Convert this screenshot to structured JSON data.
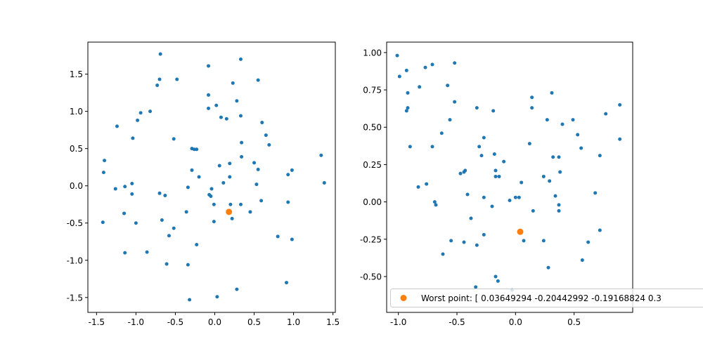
{
  "chart_data": [
    {
      "type": "scatter",
      "title": "",
      "xlabel": "",
      "ylabel": "",
      "xlim": [
        -1.61,
        1.53
      ],
      "ylim": [
        -1.7,
        1.93
      ],
      "xticks": [
        "-1.5",
        "-1.0",
        "-0.5",
        "0.0",
        "0.5",
        "1.0",
        "1.5"
      ],
      "yticks": [
        "-1.5",
        "-1.0",
        "-0.5",
        "0.0",
        "0.5",
        "1.0",
        "1.5"
      ],
      "grid": false,
      "series": [
        {
          "color": "#1f77b4",
          "points": [
            [
              -0.69,
              1.77
            ],
            [
              0.33,
              1.7
            ],
            [
              -0.08,
              1.61
            ],
            [
              -0.73,
              1.35
            ],
            [
              -0.7,
              1.43
            ],
            [
              -0.48,
              1.43
            ],
            [
              0.55,
              1.42
            ],
            [
              0.23,
              1.38
            ],
            [
              -0.08,
              1.22
            ],
            [
              0.28,
              1.14
            ],
            [
              -0.08,
              1.04
            ],
            [
              0.02,
              1.08
            ],
            [
              -0.82,
              1.0
            ],
            [
              -0.94,
              0.98
            ],
            [
              -0.98,
              0.88
            ],
            [
              0.08,
              0.92
            ],
            [
              0.15,
              0.9
            ],
            [
              0.33,
              0.94
            ],
            [
              0.6,
              0.85
            ],
            [
              -1.24,
              0.8
            ],
            [
              0.65,
              0.68
            ],
            [
              -1.04,
              0.64
            ],
            [
              -0.52,
              0.63
            ],
            [
              0.34,
              0.58
            ],
            [
              0.69,
              0.55
            ],
            [
              -0.29,
              0.5
            ],
            [
              -0.26,
              0.49
            ],
            [
              -0.23,
              0.49
            ],
            [
              0.34,
              0.39
            ],
            [
              -1.4,
              0.34
            ],
            [
              1.35,
              0.41
            ],
            [
              0.5,
              0.31
            ],
            [
              0.06,
              0.27
            ],
            [
              0.19,
              0.3
            ],
            [
              -0.29,
              0.21
            ],
            [
              0.55,
              0.22
            ],
            [
              -1.41,
              0.18
            ],
            [
              0.98,
              0.21
            ],
            [
              0.93,
              0.15
            ],
            [
              -0.2,
              0.12
            ],
            [
              0.19,
              0.12
            ],
            [
              0.11,
              0.04
            ],
            [
              1.39,
              0.04
            ],
            [
              -1.05,
              0.03
            ],
            [
              0.53,
              0.02
            ],
            [
              -1.26,
              -0.04
            ],
            [
              -1.14,
              -0.01
            ],
            [
              -0.34,
              -0.02
            ],
            [
              -0.04,
              -0.04
            ],
            [
              -0.7,
              -0.1
            ],
            [
              -0.07,
              -0.12
            ],
            [
              -0.63,
              -0.13
            ],
            [
              -1.05,
              -0.11
            ],
            [
              -0.05,
              -0.14
            ],
            [
              0.59,
              -0.2
            ],
            [
              0.93,
              -0.22
            ],
            [
              0.2,
              -0.25
            ],
            [
              -0.01,
              -0.25
            ],
            [
              0.33,
              -0.25
            ],
            [
              -0.36,
              -0.35
            ],
            [
              0.45,
              -0.35
            ],
            [
              -1.15,
              -0.37
            ],
            [
              0.22,
              -0.44
            ],
            [
              -1.42,
              -0.49
            ],
            [
              -0.67,
              -0.46
            ],
            [
              -0.01,
              -0.48
            ],
            [
              -1.0,
              -0.5
            ],
            [
              -0.52,
              -0.57
            ],
            [
              -0.58,
              -0.67
            ],
            [
              0.8,
              -0.68
            ],
            [
              -0.23,
              -0.79
            ],
            [
              0.98,
              -0.72
            ],
            [
              -1.14,
              -0.9
            ],
            [
              -0.86,
              -0.89
            ],
            [
              -0.61,
              -1.05
            ],
            [
              -0.34,
              -1.06
            ],
            [
              0.91,
              -1.3
            ],
            [
              0.28,
              -1.39
            ],
            [
              0.03,
              -1.49
            ],
            [
              -0.32,
              -1.53
            ]
          ]
        },
        {
          "color": "#ff7f0e",
          "points": [
            [
              0.18,
              -0.35
            ]
          ]
        }
      ]
    },
    {
      "type": "scatter",
      "title": "",
      "xlabel": "",
      "ylabel": "",
      "xlim": [
        -1.1,
        1.0
      ],
      "ylim": [
        -0.74,
        1.07
      ],
      "xticks": [
        "-1.0",
        "-0.5",
        "0.0",
        "0.5"
      ],
      "yticks": [
        "-0.50",
        "-0.25",
        "0.00",
        "0.25",
        "0.50",
        "0.75",
        "1.00"
      ],
      "grid": false,
      "legend": {
        "position": "lower-right",
        "entries": [
          {
            "label": "Worst point: [ 0.03649294 -0.20442992 -0.19168824  0.3",
            "color": "#ff7f0e"
          }
        ]
      },
      "series": [
        {
          "color": "#1f77b4",
          "points": [
            [
              -1.01,
              0.98
            ],
            [
              -0.99,
              0.84
            ],
            [
              -0.93,
              0.88
            ],
            [
              -0.71,
              0.92
            ],
            [
              -0.52,
              0.93
            ],
            [
              -0.77,
              0.9
            ],
            [
              -0.82,
              0.77
            ],
            [
              -0.58,
              0.78
            ],
            [
              -0.92,
              0.73
            ],
            [
              -0.92,
              0.63
            ],
            [
              -0.93,
              0.61
            ],
            [
              -0.52,
              0.67
            ],
            [
              -0.33,
              0.63
            ],
            [
              -0.19,
              0.61
            ],
            [
              0.14,
              0.7
            ],
            [
              0.14,
              0.63
            ],
            [
              0.31,
              0.73
            ],
            [
              -0.56,
              0.55
            ],
            [
              -0.63,
              0.46
            ],
            [
              0.27,
              0.55
            ],
            [
              0.49,
              0.55
            ],
            [
              0.89,
              0.65
            ],
            [
              0.77,
              0.59
            ],
            [
              0.4,
              0.52
            ],
            [
              0.53,
              0.45
            ],
            [
              -0.27,
              0.43
            ],
            [
              0.12,
              0.39
            ],
            [
              0.89,
              0.42
            ],
            [
              -0.9,
              0.37
            ],
            [
              -0.71,
              0.37
            ],
            [
              -0.31,
              0.37
            ],
            [
              0.56,
              0.36
            ],
            [
              -0.18,
              0.32
            ],
            [
              -0.29,
              0.31
            ],
            [
              0.72,
              0.31
            ],
            [
              -0.1,
              0.27
            ],
            [
              0.32,
              0.3
            ],
            [
              0.37,
              0.3
            ],
            [
              -0.47,
              0.19
            ],
            [
              -0.44,
              0.2
            ],
            [
              -0.43,
              0.21
            ],
            [
              -0.17,
              0.21
            ],
            [
              -0.17,
              0.17
            ],
            [
              -0.14,
              0.17
            ],
            [
              0.05,
              0.13
            ],
            [
              0.24,
              0.17
            ],
            [
              0.38,
              0.2
            ],
            [
              0.29,
              0.14
            ],
            [
              -0.83,
              0.1
            ],
            [
              -0.76,
              0.12
            ],
            [
              -0.41,
              0.05
            ],
            [
              -0.27,
              0.03
            ],
            [
              0.34,
              0.04
            ],
            [
              -0.69,
              0.0
            ],
            [
              -0.68,
              -0.02
            ],
            [
              0.0,
              0.03
            ],
            [
              -0.05,
              0.01
            ],
            [
              0.03,
              0.03
            ],
            [
              0.68,
              0.06
            ],
            [
              0.37,
              -0.02
            ],
            [
              -0.2,
              -0.03
            ],
            [
              0.15,
              -0.06
            ],
            [
              0.37,
              -0.06
            ],
            [
              -0.38,
              -0.11
            ],
            [
              0.72,
              -0.19
            ],
            [
              -0.27,
              -0.22
            ],
            [
              -0.55,
              -0.26
            ],
            [
              0.07,
              -0.26
            ],
            [
              0.24,
              -0.26
            ],
            [
              0.62,
              -0.27
            ],
            [
              -0.44,
              -0.27
            ],
            [
              -0.33,
              -0.29
            ],
            [
              -0.62,
              -0.35
            ],
            [
              0.57,
              -0.39
            ],
            [
              0.28,
              -0.44
            ],
            [
              -0.17,
              -0.5
            ],
            [
              -0.15,
              -0.53
            ],
            [
              -0.34,
              -0.57
            ],
            [
              -0.03,
              -0.59
            ]
          ]
        },
        {
          "color": "#ff7f0e",
          "points": [
            [
              0.04,
              -0.2
            ]
          ]
        }
      ]
    }
  ]
}
